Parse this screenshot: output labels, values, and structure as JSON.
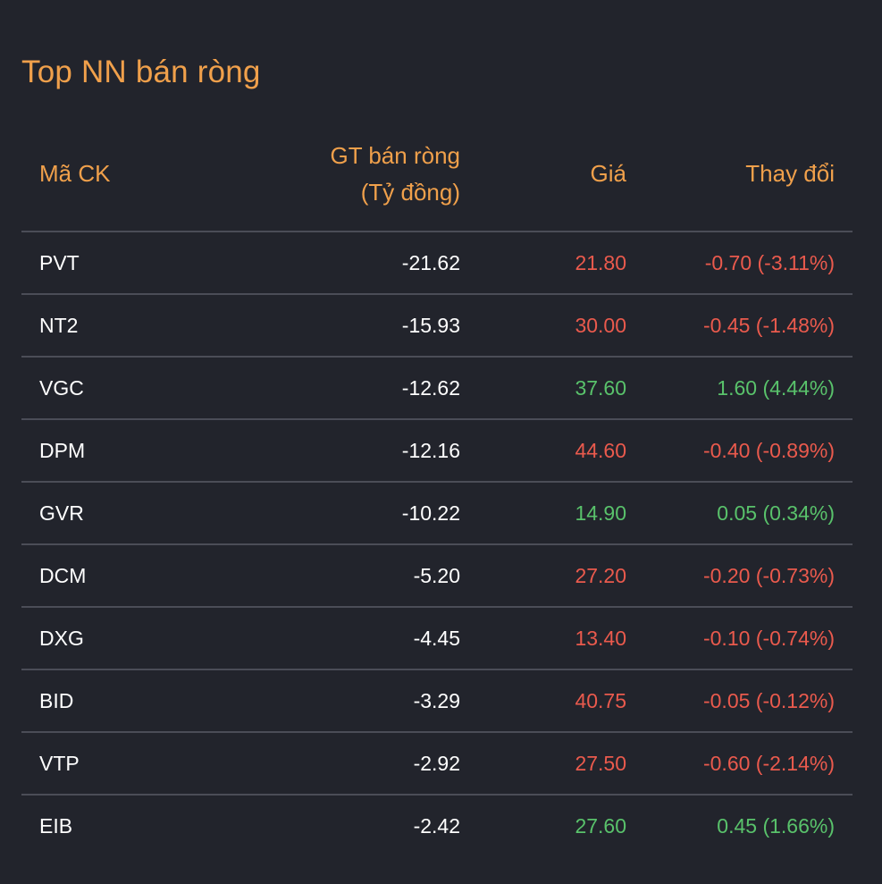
{
  "widget": {
    "title": "Top NN bán ròng",
    "columns": {
      "code": "Mã CK",
      "value_line1": "GT bán ròng",
      "value_line2": "(Tỷ đồng)",
      "price": "Giá",
      "change": "Thay đổi"
    },
    "colors": {
      "accent": "#f0a04b",
      "down": "#ea5a4d",
      "up": "#59c26b",
      "background": "#22242c",
      "divider": "#4b4d57"
    },
    "rows": [
      {
        "code": "PVT",
        "value": "-21.62",
        "price": "21.80",
        "change": "-0.70 (-3.11%)",
        "trend": "down"
      },
      {
        "code": "NT2",
        "value": "-15.93",
        "price": "30.00",
        "change": "-0.45 (-1.48%)",
        "trend": "down"
      },
      {
        "code": "VGC",
        "value": "-12.62",
        "price": "37.60",
        "change": "1.60 (4.44%)",
        "trend": "up"
      },
      {
        "code": "DPM",
        "value": "-12.16",
        "price": "44.60",
        "change": "-0.40 (-0.89%)",
        "trend": "down"
      },
      {
        "code": "GVR",
        "value": "-10.22",
        "price": "14.90",
        "change": "0.05 (0.34%)",
        "trend": "up"
      },
      {
        "code": "DCM",
        "value": "-5.20",
        "price": "27.20",
        "change": "-0.20 (-0.73%)",
        "trend": "down"
      },
      {
        "code": "DXG",
        "value": "-4.45",
        "price": "13.40",
        "change": "-0.10 (-0.74%)",
        "trend": "down"
      },
      {
        "code": "BID",
        "value": "-3.29",
        "price": "40.75",
        "change": "-0.05 (-0.12%)",
        "trend": "down"
      },
      {
        "code": "VTP",
        "value": "-2.92",
        "price": "27.50",
        "change": "-0.60 (-2.14%)",
        "trend": "down"
      },
      {
        "code": "EIB",
        "value": "-2.42",
        "price": "27.60",
        "change": "0.45 (1.66%)",
        "trend": "up"
      }
    ]
  }
}
